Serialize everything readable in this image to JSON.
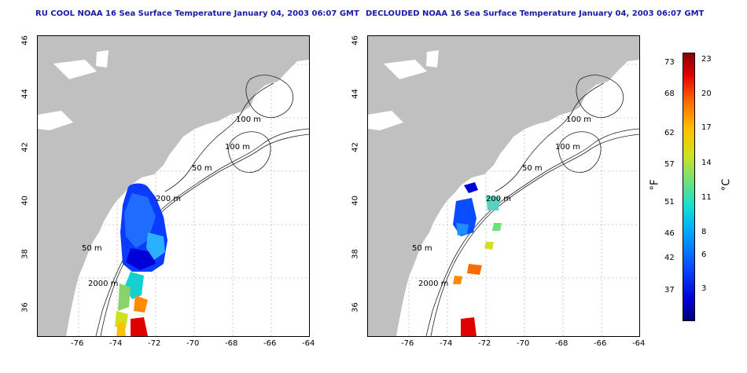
{
  "panels": [
    {
      "title": "RU COOL NOAA 16 Sea Surface Temperature January 04, 2003 06:07 GMT"
    },
    {
      "title": "DECLOUDED NOAA 16 Sea Surface Temperature January 04, 2003 06:07 GMT"
    }
  ],
  "axes": {
    "x_ticks": [
      "-76",
      "-74",
      "-72",
      "-70",
      "-68",
      "-66",
      "-64"
    ],
    "y_ticks": [
      "36",
      "38",
      "40",
      "42",
      "44",
      "46"
    ]
  },
  "contour_labels": [
    "100 m",
    "100 m",
    "50 m",
    "200 m",
    "50 m",
    "2000 m"
  ],
  "colorbar": {
    "fahrenheit_unit": "°F",
    "celsius_unit": "°C",
    "fahrenheit_ticks": [
      "73",
      "68",
      "62",
      "57",
      "51",
      "46",
      "42",
      "37"
    ],
    "celsius_ticks": [
      "23",
      "20",
      "17",
      "14",
      "11",
      "8",
      "6",
      "3"
    ]
  },
  "colors": {
    "land": "#c0c0c0",
    "title": "#1a1aa6"
  }
}
